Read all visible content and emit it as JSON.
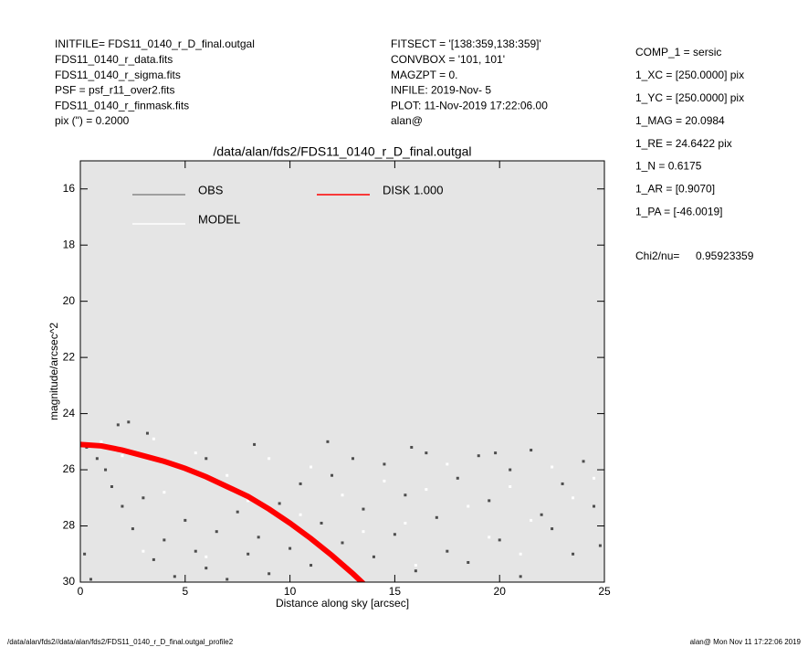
{
  "header": {
    "left": [
      "INITFILE= FDS11_0140_r_D_final.outgal",
      "FDS11_0140_r_data.fits",
      "FDS11_0140_r_sigma.fits",
      "PSF     = psf_r11_over2.fits",
      "FDS11_0140_r_finmask.fits",
      "pix (\") =  0.2000"
    ],
    "middle": [
      "FITSECT = '[138:359,138:359]'",
      "CONVBOX = '101, 101'",
      "MAGZPT  =               0.",
      "INFILE: 2019-Nov- 5",
      "PLOT: 11-Nov-2019 17:22:06.00",
      "alan@"
    ]
  },
  "params": [
    "COMP_1  = sersic",
    "1_XC    = [250.0000] pix",
    "1_YC    = [250.0000] pix",
    "1_MAG    = 20.0984",
    "1_RE    = 24.6422 pix",
    "1_N     = 0.6175",
    "1_AR    = [0.9070]",
    "1_PA    = [-46.0019]"
  ],
  "chi2": {
    "label": "Chi2/nu=",
    "value": "0.95923359"
  },
  "footer": {
    "left": "/data/alan/fds2//data/alan/fds2/FDS11_0140_r_D_final.outgal_profile2",
    "right": "alan@  Mon Nov 11 17:22:06 2019"
  },
  "chart_data": {
    "type": "scatter",
    "title": "/data/alan/fds2/FDS11_0140_r_D_final.outgal",
    "xlabel": "Distance along sky [arcsec]",
    "ylabel": "magnitude/arcsec^2",
    "xlim": [
      0,
      25
    ],
    "ylim": [
      30,
      15
    ],
    "xticks": [
      0,
      5,
      10,
      15,
      20,
      25
    ],
    "yticks": [
      16,
      18,
      20,
      22,
      24,
      26,
      28,
      30
    ],
    "background": "#e5e5e5",
    "series": [
      {
        "name": "OBS",
        "color": "#777777",
        "x": [
          0.3,
          0.8,
          1.2,
          1.5,
          2.0,
          2.5,
          3,
          3.5,
          4,
          4.5,
          1.8,
          2.3,
          3.2,
          5,
          5.5,
          6,
          6.5,
          7,
          7.5,
          8,
          8.5,
          9,
          9.5,
          10,
          10.5,
          11,
          11.5,
          12,
          12.5,
          13,
          13.5,
          14,
          14.5,
          15,
          15.5,
          16,
          16.5,
          17,
          17.5,
          18,
          18.5,
          19,
          19.5,
          20,
          20.5,
          21,
          21.5,
          22,
          22.5,
          23,
          23.5,
          24,
          24.5,
          24.8,
          6,
          8.3,
          11.8,
          15.8,
          19.8,
          0.2,
          0.5
        ],
        "y": [
          25.2,
          25.6,
          26.0,
          26.6,
          27.3,
          28.1,
          27.0,
          29.2,
          28.5,
          29.8,
          24.4,
          24.3,
          24.7,
          27.8,
          28.9,
          29.5,
          28.2,
          29.9,
          27.5,
          29.0,
          28.4,
          29.7,
          27.2,
          28.8,
          26.5,
          29.4,
          27.9,
          26.2,
          28.6,
          25.6,
          27.4,
          29.1,
          25.8,
          28.3,
          26.9,
          29.6,
          25.4,
          27.7,
          28.9,
          26.3,
          29.3,
          25.5,
          27.1,
          28.5,
          26.0,
          29.8,
          25.3,
          27.6,
          28.1,
          26.5,
          29.0,
          25.7,
          27.3,
          28.7,
          25.6,
          25.1,
          25.0,
          25.2,
          25.4,
          29.0,
          29.9
        ]
      },
      {
        "name": "MODEL",
        "color": "#ffffff",
        "x": [
          1,
          2,
          3.5,
          4,
          5.5,
          7,
          8,
          9,
          10.5,
          11,
          12.5,
          13.5,
          14.5,
          15.5,
          16.5,
          17.5,
          18.5,
          19.5,
          20.5,
          21.5,
          22.5,
          23.5,
          24.5,
          3,
          6,
          16,
          21
        ],
        "y": [
          25.0,
          25.5,
          24.9,
          26.8,
          25.4,
          26.2,
          27.1,
          25.6,
          27.6,
          25.9,
          26.9,
          28.2,
          26.4,
          27.9,
          26.7,
          25.8,
          27.3,
          28.4,
          26.6,
          27.8,
          25.9,
          27.0,
          26.3,
          28.9,
          29.1,
          29.4,
          29.0
        ]
      },
      {
        "name": "DISK  1.000",
        "color": "#ff0000",
        "x": [
          0,
          1,
          2,
          3,
          4,
          5,
          6,
          7,
          8,
          9,
          10,
          11,
          12,
          13,
          13.5
        ],
        "y": [
          25.1,
          25.15,
          25.3,
          25.5,
          25.7,
          25.95,
          26.25,
          26.6,
          26.95,
          27.4,
          27.9,
          28.45,
          29.05,
          29.7,
          30.05
        ]
      }
    ]
  }
}
